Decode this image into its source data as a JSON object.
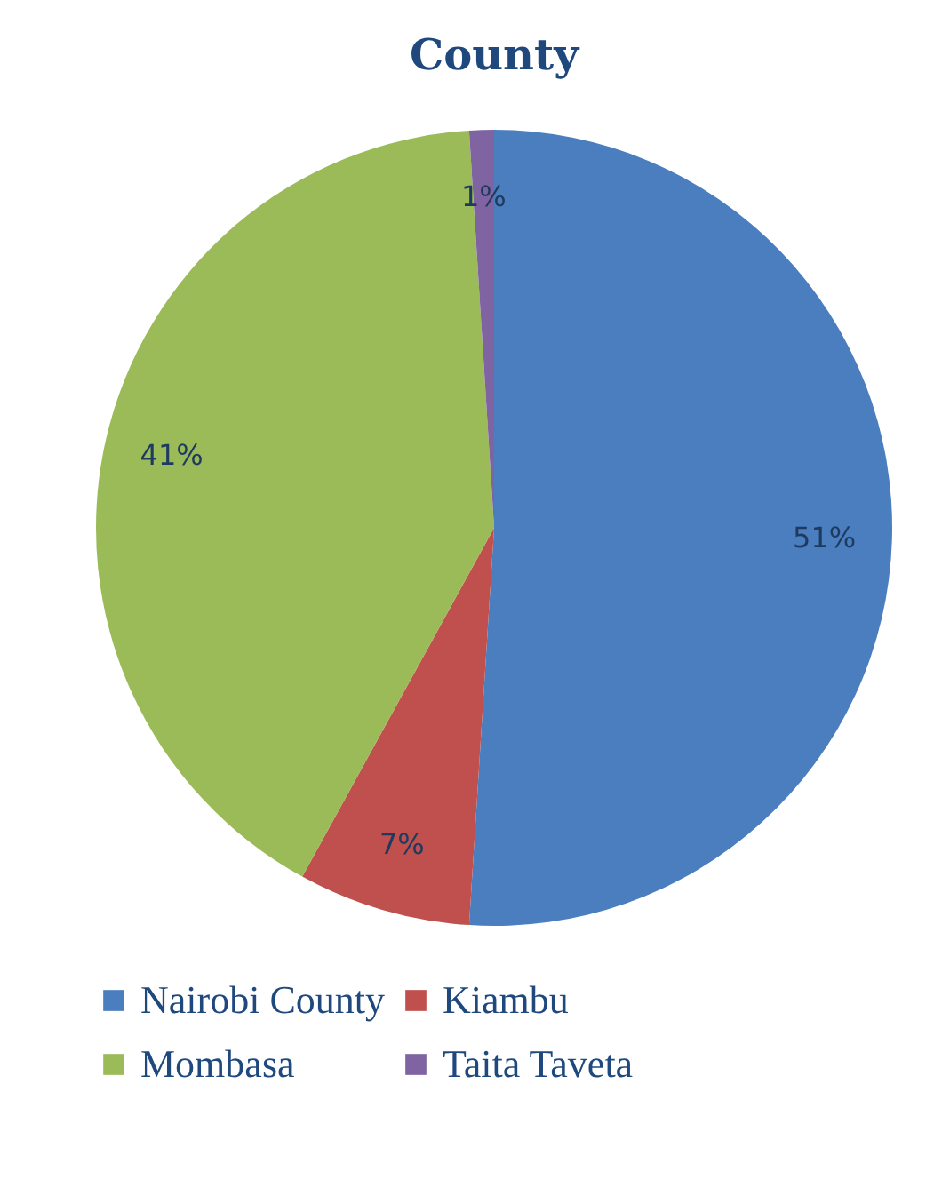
{
  "chart_data": {
    "type": "pie",
    "title": "County",
    "categories": [
      "Nairobi County",
      "Kiambu",
      "Mombasa",
      "Taita Taveta"
    ],
    "values": [
      51,
      7,
      41,
      1
    ],
    "value_labels": [
      "51%",
      "7%",
      "41%",
      "1%"
    ],
    "colors": [
      "#4a7ebf",
      "#c0504d",
      "#9bbb59",
      "#8064a2"
    ],
    "legend": "bottom"
  }
}
